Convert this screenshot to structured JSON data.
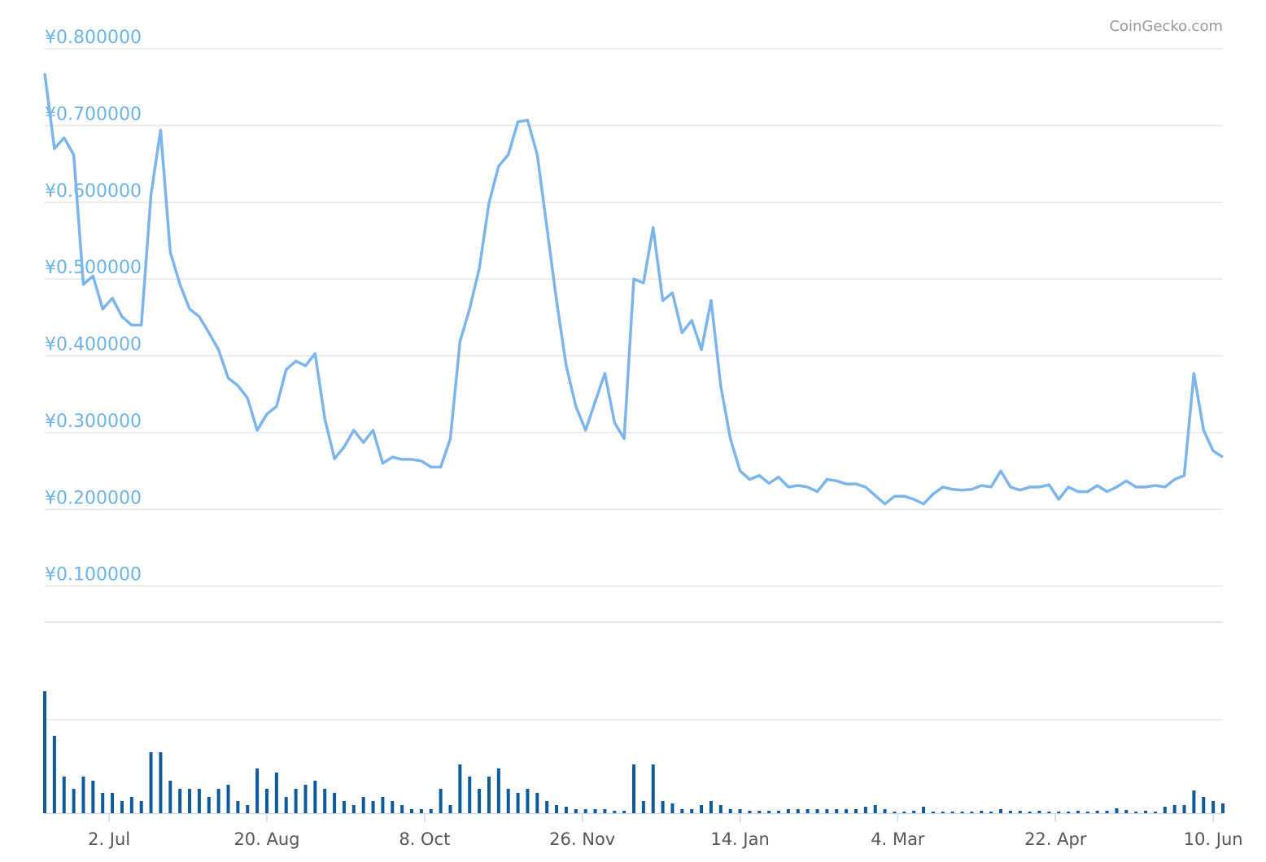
{
  "chart_data": [
    {
      "type": "line",
      "credit": "CoinGecko.com",
      "x": [
        0,
        3,
        6,
        9,
        12,
        15,
        18,
        21,
        24,
        27,
        30,
        33,
        36,
        39,
        42,
        45,
        48,
        51,
        54,
        57,
        60,
        63,
        66,
        69,
        72,
        75,
        78,
        81,
        84,
        87,
        90,
        93,
        96,
        99,
        102,
        105,
        108,
        111,
        114,
        117,
        120,
        123,
        126,
        129,
        132,
        135,
        138,
        141,
        144,
        147,
        150,
        153,
        156,
        159,
        162,
        165,
        168,
        171,
        174,
        177,
        180,
        183,
        186,
        189,
        192,
        195,
        198,
        201,
        204,
        207,
        210,
        213,
        216,
        219,
        222,
        225,
        228,
        231,
        234,
        237,
        240,
        243,
        246,
        249,
        252,
        255,
        258,
        261,
        264,
        267,
        270,
        273,
        276,
        279,
        282,
        285,
        288,
        291,
        294,
        297,
        300,
        303,
        306,
        309,
        312,
        315,
        318,
        321,
        324,
        327,
        330,
        333,
        336,
        339,
        342,
        345,
        348,
        351,
        354,
        357,
        360,
        363,
        366
      ],
      "series": [
        {
          "color": "#7cb5ec",
          "values": [
            0.768,
            0.67,
            0.684,
            0.662,
            0.493,
            0.504,
            0.461,
            0.475,
            0.451,
            0.44,
            0.44,
            0.61,
            0.694,
            0.535,
            0.493,
            0.461,
            0.451,
            0.43,
            0.408,
            0.371,
            0.361,
            0.345,
            0.303,
            0.324,
            0.334,
            0.382,
            0.393,
            0.387,
            0.403,
            0.318,
            0.266,
            0.281,
            0.303,
            0.287,
            0.303,
            0.26,
            0.268,
            0.265,
            0.265,
            0.263,
            0.255,
            0.255,
            0.292,
            0.419,
            0.461,
            0.514,
            0.599,
            0.647,
            0.662,
            0.705,
            0.707,
            0.662,
            0.567,
            0.472,
            0.387,
            0.334,
            0.303,
            0.34,
            0.377,
            0.313,
            0.292,
            0.5,
            0.495,
            0.567,
            0.472,
            0.482,
            0.43,
            0.446,
            0.408,
            0.472,
            0.361,
            0.292,
            0.25,
            0.239,
            0.244,
            0.234,
            0.242,
            0.229,
            0.231,
            0.229,
            0.223,
            0.239,
            0.237,
            0.233,
            0.233,
            0.229,
            0.218,
            0.207,
            0.217,
            0.217,
            0.213,
            0.207,
            0.22,
            0.229,
            0.226,
            0.225,
            0.226,
            0.231,
            0.229,
            0.25,
            0.229,
            0.225,
            0.229,
            0.229,
            0.232,
            0.213,
            0.229,
            0.223,
            0.223,
            0.231,
            0.223,
            0.229,
            0.237,
            0.229,
            0.229,
            0.231,
            0.229,
            0.239,
            0.244,
            0.377,
            0.303,
            0.276,
            0.268
          ]
        }
      ],
      "xlim": [
        0,
        366
      ],
      "ylim": [
        0.053,
        0.8
      ],
      "yticks": [
        {
          "value": 0.1,
          "label": "¥0.100000"
        },
        {
          "value": 0.2,
          "label": "¥0.200000"
        },
        {
          "value": 0.3,
          "label": "¥0.300000"
        },
        {
          "value": 0.4,
          "label": "¥0.400000"
        },
        {
          "value": 0.5,
          "label": "¥0.500000"
        },
        {
          "value": 0.6,
          "label": "¥0.600000"
        },
        {
          "value": 0.7,
          "label": "¥0.700000"
        },
        {
          "value": 0.8,
          "label": "¥0.800000"
        }
      ],
      "grid": true
    },
    {
      "type": "bar",
      "color": "#0f5a9a",
      "x": [
        0,
        3,
        6,
        9,
        12,
        15,
        18,
        21,
        24,
        27,
        30,
        33,
        36,
        39,
        42,
        45,
        48,
        51,
        54,
        57,
        60,
        63,
        66,
        69,
        72,
        75,
        78,
        81,
        84,
        87,
        90,
        93,
        96,
        99,
        102,
        105,
        108,
        111,
        114,
        117,
        120,
        123,
        126,
        129,
        132,
        135,
        138,
        141,
        144,
        147,
        150,
        153,
        156,
        159,
        162,
        165,
        168,
        171,
        174,
        177,
        180,
        183,
        186,
        189,
        192,
        195,
        198,
        201,
        204,
        207,
        210,
        213,
        216,
        219,
        222,
        225,
        228,
        231,
        234,
        237,
        240,
        243,
        246,
        249,
        252,
        255,
        258,
        261,
        264,
        267,
        270,
        273,
        276,
        279,
        282,
        285,
        288,
        291,
        294,
        297,
        300,
        303,
        306,
        309,
        312,
        315,
        318,
        321,
        324,
        327,
        330,
        333,
        336,
        339,
        342,
        345,
        348,
        351,
        354,
        357,
        360,
        363,
        366
      ],
      "values": [
        150,
        95,
        45,
        30,
        45,
        40,
        25,
        25,
        15,
        20,
        15,
        75,
        75,
        40,
        30,
        30,
        30,
        20,
        30,
        35,
        15,
        10,
        55,
        30,
        50,
        20,
        30,
        35,
        40,
        30,
        25,
        15,
        10,
        20,
        15,
        20,
        15,
        10,
        5,
        5,
        5,
        30,
        10,
        60,
        45,
        30,
        45,
        55,
        30,
        25,
        30,
        25,
        15,
        10,
        8,
        5,
        5,
        5,
        5,
        3,
        3,
        60,
        15,
        60,
        15,
        12,
        5,
        5,
        10,
        15,
        10,
        5,
        5,
        3,
        3,
        3,
        3,
        5,
        5,
        5,
        5,
        5,
        5,
        5,
        5,
        8,
        10,
        5,
        2,
        2,
        3,
        8,
        2,
        2,
        2,
        2,
        2,
        3,
        2,
        5,
        3,
        3,
        2,
        3,
        2,
        2,
        2,
        3,
        2,
        3,
        3,
        6,
        4,
        2,
        3,
        2,
        8,
        10,
        10,
        28,
        20,
        15,
        12
      ],
      "xlim": [
        0,
        366
      ],
      "ylim": [
        0,
        150
      ],
      "xticks": [
        {
          "value": 20,
          "label": "2. Jul"
        },
        {
          "value": 69,
          "label": "20. Aug"
        },
        {
          "value": 118,
          "label": "8. Oct"
        },
        {
          "value": 167,
          "label": "26. Nov"
        },
        {
          "value": 216,
          "label": "14. Jan"
        },
        {
          "value": 265,
          "label": "4. Mar"
        },
        {
          "value": 314,
          "label": "22. Apr"
        },
        {
          "value": 363,
          "label": "10. Jun"
        }
      ]
    }
  ]
}
